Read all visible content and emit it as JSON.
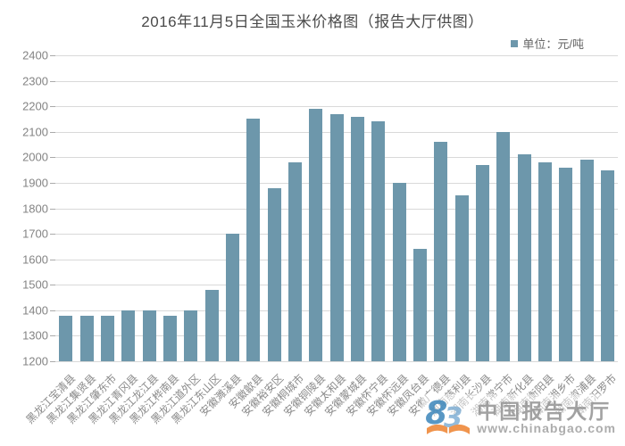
{
  "title": "2016年11月5日全国玉米价格图（报告大厅供图）",
  "legend": {
    "label": "单位：元/吨"
  },
  "watermark": {
    "name": "中国报告大厅",
    "url": "www.chinabgao.com"
  },
  "colors": {
    "bar": "#6d97ab",
    "grid": "#d9d9d9",
    "title_text": "#4a4a4a",
    "axis_text": "#848484",
    "legend_text": "#666666",
    "watermark_blue": "#4a8fc0",
    "watermark_light_blue": "#8ab6d8",
    "watermark_orange": "#ef8b3e"
  },
  "chart_data": {
    "type": "bar",
    "title": "2016年11月5日全国玉米价格图（报告大厅供图）",
    "legend": [
      "单位：元/吨"
    ],
    "legend_position": "top-right",
    "grid": true,
    "xlabel": "",
    "ylabel": "",
    "ylim": [
      1200,
      2400
    ],
    "ytick_step": 100,
    "categories": [
      "黑龙江宝清县",
      "黑龙江集贤县",
      "黑龙江肇东市",
      "黑龙江青冈县",
      "黑龙江龙江县",
      "黑龙江桦南县",
      "黑龙江道外区",
      "黑龙江东山区",
      "安徽濉溪县",
      "安徽歙县",
      "安徽裕安区",
      "安徽桐城市",
      "安徽铜陵县",
      "安徽太和县",
      "安徽蒙城县",
      "安徽怀宁县",
      "安徽怀远县",
      "安徽凤台县",
      "安徽广德县",
      "湖南慈利县",
      "湖南长沙县",
      "湖南常宁市",
      "湖南新化县",
      "湖南衡阳县",
      "湖南湘乡市",
      "湖南溆浦县",
      "湖南汨罗市"
    ],
    "values": [
      1380,
      1380,
      1380,
      1400,
      1400,
      1380,
      1400,
      1480,
      1700,
      2150,
      1880,
      1980,
      2190,
      2170,
      2160,
      2140,
      1900,
      1640,
      2060,
      1850,
      1970,
      2100,
      2010,
      1980,
      1960,
      1990,
      1950
    ]
  }
}
